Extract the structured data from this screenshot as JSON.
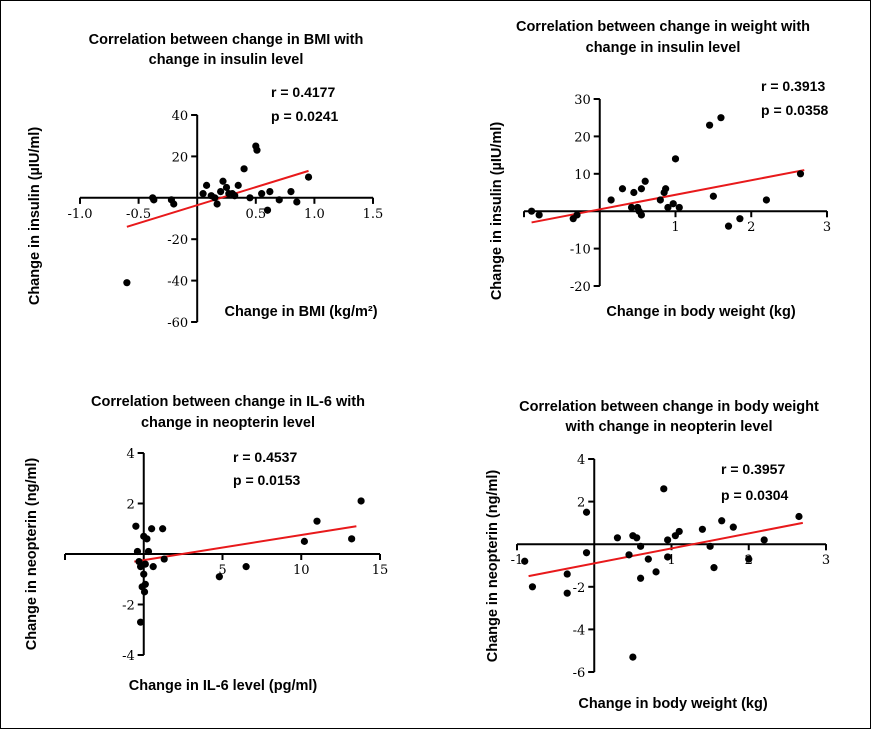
{
  "chart_data": [
    {
      "type": "scatter",
      "title": [
        "Correlation between change in BMI with",
        "change in insulin level"
      ],
      "stats": {
        "r": "r = 0.4177",
        "p": "p = 0.0241"
      },
      "xlabel": "Change in BMI (kg/m²)",
      "ylabel": "Change in insulin (µIU/ml)",
      "xlim": [
        -1.0,
        1.5
      ],
      "ylim": [
        -60,
        40
      ],
      "xticks": [
        -1.0,
        -0.5,
        0.5,
        1.0,
        1.5
      ],
      "xtick_labels": [
        "-1.0",
        "-0.5",
        "0.5",
        "1.0",
        "1.5"
      ],
      "yticks": [
        40,
        20,
        -20,
        -40,
        -60
      ],
      "ytick_labels": [
        "40",
        "20",
        "-20",
        "-40",
        "-60"
      ],
      "fit": {
        "x": [
          -0.6,
          0.95
        ],
        "y": [
          -14,
          13
        ]
      },
      "points": [
        [
          -0.6,
          -41
        ],
        [
          -0.38,
          0
        ],
        [
          -0.37,
          -1
        ],
        [
          -0.22,
          -1
        ],
        [
          -0.2,
          -3
        ],
        [
          0.05,
          2
        ],
        [
          0.08,
          6
        ],
        [
          0.12,
          1
        ],
        [
          0.15,
          0
        ],
        [
          0.17,
          -3
        ],
        [
          0.2,
          3
        ],
        [
          0.22,
          8
        ],
        [
          0.25,
          5
        ],
        [
          0.3,
          2
        ],
        [
          0.35,
          6
        ],
        [
          0.4,
          14
        ],
        [
          0.45,
          0
        ],
        [
          0.5,
          25
        ],
        [
          0.51,
          23
        ],
        [
          0.55,
          2
        ],
        [
          0.6,
          -6
        ],
        [
          0.62,
          3
        ],
        [
          0.7,
          -1
        ],
        [
          0.8,
          3
        ],
        [
          0.85,
          -2
        ],
        [
          0.95,
          10
        ],
        [
          0.27,
          2
        ],
        [
          0.32,
          1
        ]
      ]
    },
    {
      "type": "scatter",
      "title": [
        "Correlation between change in weight with",
        "change in insulin level"
      ],
      "stats": {
        "r": "r = 0.3913",
        "p": "p = 0.0358"
      },
      "xlabel": "Change in body weight (kg)",
      "ylabel": "Change in insulin (µIU/ml)",
      "xlim": [
        -1,
        3
      ],
      "ylim": [
        -20,
        30
      ],
      "xticks": [
        1,
        2,
        3
      ],
      "xtick_labels": [
        "1",
        "2",
        "3"
      ],
      "yticks": [
        30,
        20,
        10,
        -10,
        -20
      ],
      "ytick_labels": [
        "30",
        "20",
        "10",
        "-10",
        "-20"
      ],
      "fit": {
        "x": [
          -0.9,
          2.7
        ],
        "y": [
          -3,
          11
        ]
      },
      "points": [
        [
          -0.9,
          0
        ],
        [
          -0.8,
          -1
        ],
        [
          -0.35,
          -2
        ],
        [
          -0.3,
          -1
        ],
        [
          0.15,
          3
        ],
        [
          0.3,
          6
        ],
        [
          0.42,
          1
        ],
        [
          0.45,
          5
        ],
        [
          0.5,
          1
        ],
        [
          0.52,
          0
        ],
        [
          0.55,
          -1
        ],
        [
          0.55,
          6
        ],
        [
          0.6,
          8
        ],
        [
          0.8,
          3
        ],
        [
          0.85,
          5
        ],
        [
          0.87,
          6
        ],
        [
          0.9,
          1
        ],
        [
          0.97,
          2
        ],
        [
          1.0,
          14
        ],
        [
          1.05,
          1
        ],
        [
          1.45,
          23
        ],
        [
          1.5,
          4
        ],
        [
          1.6,
          25
        ],
        [
          1.7,
          -4
        ],
        [
          1.85,
          -2
        ],
        [
          2.2,
          3
        ],
        [
          2.65,
          10
        ]
      ]
    },
    {
      "type": "scatter",
      "title": [
        "Correlation between change in IL-6 with",
        "change in neopterin level"
      ],
      "stats": {
        "r": "r = 0.4537",
        "p": "p = 0.0153"
      },
      "xlabel": "Change in IL-6 level (pg/ml)",
      "ylabel": "Change in neopterin (ng/ml)",
      "xlim": [
        -5,
        15
      ],
      "ylim": [
        -4,
        4
      ],
      "xticks": [
        5,
        10,
        15
      ],
      "xtick_labels": [
        "5",
        "10",
        "15"
      ],
      "yticks": [
        4,
        2,
        -2,
        -4
      ],
      "ytick_labels": [
        "4",
        "2",
        "-2",
        "-4"
      ],
      "fit": {
        "x": [
          -0.6,
          13.5
        ],
        "y": [
          -0.3,
          1.1
        ]
      },
      "points": [
        [
          -0.5,
          1.1
        ],
        [
          -0.4,
          0.1
        ],
        [
          -0.3,
          -0.3
        ],
        [
          -0.2,
          -0.5
        ],
        [
          -0.2,
          -2.7
        ],
        [
          -0.1,
          -1.3
        ],
        [
          0.0,
          0.7
        ],
        [
          0.0,
          -0.8
        ],
        [
          0.05,
          -1.5
        ],
        [
          0.1,
          -1.2
        ],
        [
          0.2,
          0.6
        ],
        [
          0.3,
          0.1
        ],
        [
          0.5,
          1.0
        ],
        [
          0.6,
          -0.5
        ],
        [
          1.2,
          1.0
        ],
        [
          1.3,
          -0.2
        ],
        [
          4.8,
          -0.9
        ],
        [
          6.5,
          -0.5
        ],
        [
          10.2,
          0.5
        ],
        [
          11.0,
          1.3
        ],
        [
          13.2,
          0.6
        ],
        [
          13.8,
          2.1
        ],
        [
          0.1,
          -0.4
        ]
      ]
    },
    {
      "type": "scatter",
      "title": [
        "Correlation between change in body weight",
        "with change in neopterin level"
      ],
      "stats": {
        "r": "r = 0.3957",
        "p": "p = 0.0304"
      },
      "xlabel": "Change in body weight (kg)",
      "ylabel": "Change in neopterin (ng/ml)",
      "xlim": [
        -1,
        3
      ],
      "ylim": [
        -6,
        4
      ],
      "xticks": [
        -1,
        1,
        2,
        3
      ],
      "xtick_labels": [
        "-1",
        "1",
        "2",
        "3"
      ],
      "yticks": [
        4,
        2,
        -2,
        -4,
        -6
      ],
      "ytick_labels": [
        "4",
        "2",
        "-2",
        "-4",
        "-6"
      ],
      "fit": {
        "x": [
          -0.85,
          2.7
        ],
        "y": [
          -1.5,
          1.0
        ]
      },
      "points": [
        [
          -0.9,
          -0.8
        ],
        [
          -0.8,
          -2.0
        ],
        [
          -0.35,
          -1.4
        ],
        [
          -0.35,
          -2.3
        ],
        [
          -0.1,
          1.5
        ],
        [
          -0.1,
          -0.4
        ],
        [
          0.3,
          0.3
        ],
        [
          0.45,
          -0.5
        ],
        [
          0.5,
          0.4
        ],
        [
          0.5,
          -5.3
        ],
        [
          0.55,
          0.3
        ],
        [
          0.6,
          -0.1
        ],
        [
          0.6,
          -1.6
        ],
        [
          0.7,
          -0.7
        ],
        [
          0.8,
          -1.3
        ],
        [
          0.9,
          2.6
        ],
        [
          0.95,
          -0.6
        ],
        [
          0.95,
          0.2
        ],
        [
          1.05,
          0.4
        ],
        [
          1.1,
          0.6
        ],
        [
          1.4,
          0.7
        ],
        [
          1.5,
          -0.1
        ],
        [
          1.55,
          -1.1
        ],
        [
          1.65,
          1.1
        ],
        [
          1.8,
          0.8
        ],
        [
          2.0,
          -0.7
        ],
        [
          2.2,
          0.2
        ],
        [
          2.65,
          1.3
        ]
      ]
    }
  ]
}
